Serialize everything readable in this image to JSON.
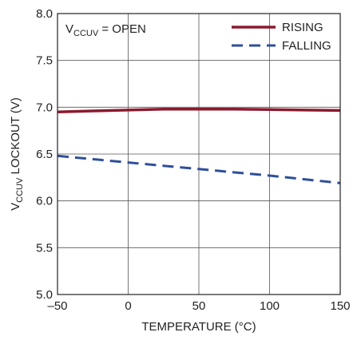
{
  "chart_data": {
    "type": "line",
    "xlabel": "TEMPERATURE (°C)",
    "ylabel": {
      "prefix": "V",
      "sub": "CCUV",
      "suffix": " LOCKOUT (V)"
    },
    "annotation": {
      "prefix": "V",
      "sub": "CCUV",
      "suffix": " = OPEN"
    },
    "x_ticks": [
      "–50",
      "0",
      "50",
      "100",
      "150"
    ],
    "y_ticks": [
      "5.0",
      "5.5",
      "6.0",
      "6.5",
      "7.0",
      "7.5",
      "8.0"
    ],
    "xlim": [
      -50,
      150
    ],
    "ylim": [
      5.0,
      8.0
    ],
    "grid": true,
    "legend_position": "top-right",
    "series": [
      {
        "name": "RISING",
        "color": "#8b1a2e",
        "style": "solid",
        "x": [
          -50,
          -25,
          0,
          25,
          50,
          75,
          100,
          125,
          150
        ],
        "y": [
          6.95,
          6.96,
          6.97,
          6.98,
          6.98,
          6.98,
          6.975,
          6.97,
          6.965
        ]
      },
      {
        "name": "FALLING",
        "color": "#2f4f9a",
        "style": "dashed",
        "x": [
          -50,
          0,
          50,
          100,
          150
        ],
        "y": [
          6.48,
          6.41,
          6.34,
          6.27,
          6.19
        ]
      }
    ]
  }
}
